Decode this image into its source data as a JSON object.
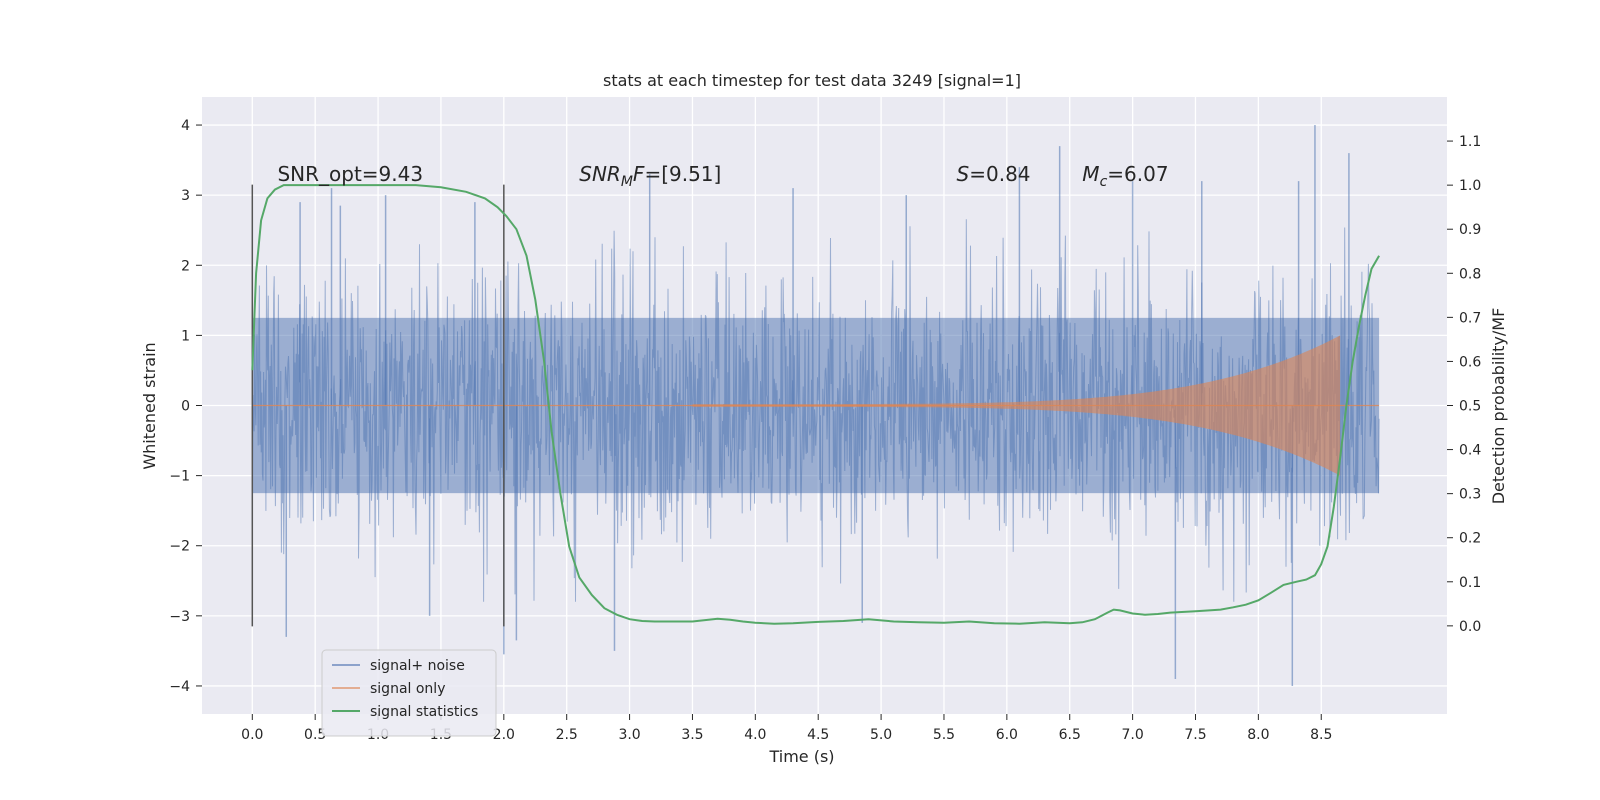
{
  "chart_data": {
    "type": "line",
    "title": "stats at each timestep for test data 3249 [signal=1]",
    "xlabel": "Time (s)",
    "ylabel": "Whitened strain",
    "y2label": "Detection probability/MF",
    "xlim": [
      -0.4,
      9.5
    ],
    "ylim": [
      -4.4,
      4.4
    ],
    "y2lim": [
      -0.2,
      1.2
    ],
    "xticks": [
      0,
      0.5,
      1,
      1.5,
      2,
      2.5,
      3,
      3.5,
      4,
      4.5,
      5,
      5.5,
      6,
      6.5,
      7,
      7.5,
      8,
      8.5
    ],
    "xtick_labels": [
      "0.0",
      "0.5",
      "1.0",
      "1.5",
      "2.0",
      "2.5",
      "3.0",
      "3.5",
      "4.0",
      "4.5",
      "5.0",
      "5.5",
      "6.0",
      "6.5",
      "7.0",
      "7.5",
      "8.0",
      "8.5"
    ],
    "yticks": [
      -4,
      -3,
      -2,
      -1,
      0,
      1,
      2,
      3,
      4
    ],
    "ytick_labels": [
      "−4",
      "−3",
      "−2",
      "−1",
      "0",
      "1",
      "2",
      "3",
      "4"
    ],
    "y2ticks": [
      0,
      0.1,
      0.2,
      0.3,
      0.4,
      0.5,
      0.6,
      0.7,
      0.8,
      0.9,
      1.0,
      1.1
    ],
    "y2tick_labels": [
      "0.0",
      "0.1",
      "0.2",
      "0.3",
      "0.4",
      "0.5",
      "0.6",
      "0.7",
      "0.8",
      "0.9",
      "1.0",
      "1.1"
    ],
    "grid": true,
    "legend_position": "lower-left",
    "vlines": [
      {
        "x": 0.0,
        "ymin": -3.15,
        "ymax": 3.15
      },
      {
        "x": 2.0,
        "ymin": -3.15,
        "ymax": 3.15
      }
    ],
    "annotations": [
      {
        "id": "snr-opt",
        "x": 0.2,
        "y": 3.2,
        "parts": [
          {
            "t": "SNR_opt=9.43"
          }
        ]
      },
      {
        "id": "snr-mf",
        "x": 2.6,
        "y": 3.2,
        "parts": [
          {
            "t": "SNR",
            "i": true
          },
          {
            "t": "M",
            "i": true,
            "sub": true
          },
          {
            "t": "F",
            "i": true
          },
          {
            "t": "=[9.51]"
          }
        ]
      },
      {
        "id": "s-val",
        "x": 5.6,
        "y": 3.2,
        "parts": [
          {
            "t": "S",
            "i": true
          },
          {
            "t": "=0.84"
          }
        ]
      },
      {
        "id": "mc-val",
        "x": 6.6,
        "y": 3.2,
        "parts": [
          {
            "t": "M",
            "i": true
          },
          {
            "t": "c",
            "i": true,
            "sub": true
          },
          {
            "t": "=6.07"
          }
        ]
      }
    ],
    "series": [
      {
        "name": "signal+ noise",
        "color": "#4c72b0",
        "axis": "left",
        "kind": "noise",
        "x_range": [
          0,
          8.96
        ],
        "envelope_band": 1.25,
        "peaks": [
          [
            0.27,
            -3.3
          ],
          [
            0.38,
            2.9
          ],
          [
            0.63,
            3.1
          ],
          [
            0.7,
            2.85
          ],
          [
            1.06,
            3.0
          ],
          [
            1.41,
            -3.0
          ],
          [
            1.77,
            2.9
          ],
          [
            2.0,
            -3.55
          ],
          [
            2.1,
            -3.35
          ],
          [
            2.88,
            -3.5
          ],
          [
            3.16,
            3.3
          ],
          [
            4.3,
            3.1
          ],
          [
            4.85,
            -3.1
          ],
          [
            5.2,
            3.0
          ],
          [
            6.1,
            3.4
          ],
          [
            6.42,
            3.7
          ],
          [
            7.0,
            3.2
          ],
          [
            7.34,
            -3.9
          ],
          [
            7.55,
            3.2
          ],
          [
            8.27,
            -4.0
          ],
          [
            8.32,
            3.2
          ],
          [
            8.45,
            4.0
          ],
          [
            8.72,
            3.6
          ]
        ]
      },
      {
        "name": "signal only",
        "color": "#dd8452",
        "axis": "left",
        "kind": "chirp",
        "x_range": [
          3.5,
          8.65
        ],
        "amp_start": 0.02,
        "amp_end": 1.0,
        "tail_x": 8.96
      },
      {
        "name": "signal statistics",
        "color": "#55a868",
        "axis": "right",
        "kind": "line",
        "x": [
          0,
          0.03,
          0.07,
          0.12,
          0.18,
          0.25,
          0.35,
          0.5,
          0.7,
          1.0,
          1.3,
          1.5,
          1.7,
          1.85,
          1.95,
          2.02,
          2.1,
          2.18,
          2.25,
          2.32,
          2.38,
          2.45,
          2.52,
          2.6,
          2.7,
          2.8,
          2.9,
          3.0,
          3.1,
          3.2,
          3.3,
          3.5,
          3.7,
          3.8,
          3.9,
          4.0,
          4.15,
          4.3,
          4.5,
          4.7,
          4.9,
          5.1,
          5.3,
          5.5,
          5.7,
          5.9,
          6.1,
          6.3,
          6.5,
          6.6,
          6.7,
          6.8,
          6.85,
          6.9,
          7.0,
          7.1,
          7.2,
          7.3,
          7.5,
          7.7,
          7.8,
          7.9,
          8.0,
          8.1,
          8.2,
          8.3,
          8.38,
          8.45,
          8.5,
          8.55,
          8.6,
          8.65,
          8.7,
          8.75,
          8.8,
          8.85,
          8.9,
          8.96
        ],
        "y": [
          0.58,
          0.8,
          0.92,
          0.97,
          0.99,
          1.0,
          1.0,
          1.0,
          1.0,
          1.0,
          1.0,
          0.995,
          0.985,
          0.97,
          0.95,
          0.93,
          0.9,
          0.84,
          0.74,
          0.6,
          0.44,
          0.3,
          0.18,
          0.11,
          0.07,
          0.04,
          0.025,
          0.015,
          0.011,
          0.01,
          0.01,
          0.01,
          0.016,
          0.014,
          0.01,
          0.007,
          0.005,
          0.006,
          0.009,
          0.011,
          0.015,
          0.01,
          0.008,
          0.007,
          0.01,
          0.006,
          0.005,
          0.008,
          0.006,
          0.008,
          0.015,
          0.03,
          0.037,
          0.035,
          0.028,
          0.025,
          0.027,
          0.03,
          0.033,
          0.037,
          0.042,
          0.048,
          0.058,
          0.075,
          0.093,
          0.1,
          0.105,
          0.115,
          0.14,
          0.18,
          0.27,
          0.38,
          0.5,
          0.6,
          0.68,
          0.75,
          0.81,
          0.84
        ]
      }
    ]
  }
}
